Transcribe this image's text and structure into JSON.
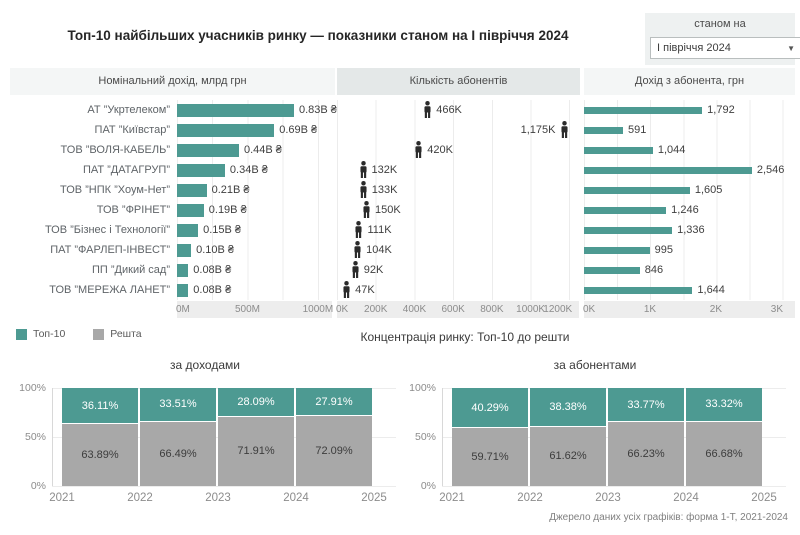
{
  "title": "Топ-10 найбільших учасників ринку — показники станом на І півріччя 2024",
  "filter": {
    "label": "станом на",
    "value": "І півріччя 2024"
  },
  "colors": {
    "top10": "#4d9a92",
    "rest": "#a8a8a8",
    "icon": "#2b2b2b",
    "header_highlight": "#e4e8e8",
    "header_bg": "#f4f6f6",
    "axis_strip": "#ededed"
  },
  "companies": [
    "АТ ”Укртелеком”",
    "ПАТ ”Київстар”",
    "ТОВ ”ВОЛЯ-КАБЕЛЬ”",
    "ПАТ ”ДАТАГРУП”",
    "ТОВ ”НПК ”Хоум-Нет”",
    "ТОВ ”ФРІНЕТ”",
    "ТОВ ”Бізнес і Технології”",
    "ПАТ ”ФАРЛЕП-ІНВЕСТ”",
    "ПП ”Дикий сад”",
    "ТОВ ”МЕРЕЖА ЛАНЕТ”"
  ],
  "legend": [
    {
      "label": "Топ-10"
    },
    {
      "label": "Решта"
    }
  ],
  "concentration_subtitle": "Концентрація ринку: Топ-10 до решти",
  "footer": "Джерело даних усіх графіків: форма 1-Т, 2021-2024",
  "chart_data": [
    {
      "id": "revenue",
      "type": "bar",
      "orientation": "horizontal",
      "title": "Номінальний дохід, млрд грн",
      "categories_ref": "companies",
      "values": [
        830,
        690,
        440,
        340,
        210,
        190,
        150,
        100,
        80,
        80
      ],
      "unit": "M грн",
      "value_labels": [
        "0.83B ₴",
        "0.69B ₴",
        "0.44B ₴",
        "0.34B ₴",
        "0.21B ₴",
        "0.19B ₴",
        "0.15B ₴",
        "0.10B ₴",
        "0.08B ₴",
        "0.08B ₴"
      ],
      "x_ticks": [
        {
          "label": "0M",
          "v": 0
        },
        {
          "label": "500M",
          "v": 500
        },
        {
          "label": "1000M",
          "v": 1000
        }
      ],
      "xlim": [
        0,
        1100
      ]
    },
    {
      "id": "subscribers",
      "type": "pictogram",
      "title": "Кількість абонентів",
      "categories_ref": "companies",
      "values": [
        466,
        1175,
        420,
        132,
        133,
        150,
        111,
        104,
        92,
        47
      ],
      "unit": "K абонентів",
      "value_labels": [
        "466K",
        "1,175K",
        "420K",
        "132K",
        "133K",
        "150K",
        "111K",
        "104K",
        "92K",
        "47K"
      ],
      "label_side": [
        "right",
        "left",
        "right",
        "right",
        "right",
        "right",
        "right",
        "right",
        "right",
        "right"
      ],
      "x_ticks": [
        {
          "label": "0K",
          "v": 0
        },
        {
          "label": "200K",
          "v": 200
        },
        {
          "label": "400K",
          "v": 400
        },
        {
          "label": "600K",
          "v": 600
        },
        {
          "label": "800K",
          "v": 800
        },
        {
          "label": "1000K",
          "v": 1000
        },
        {
          "label": "1200K",
          "v": 1200
        }
      ],
      "xlim": [
        0,
        1250
      ]
    },
    {
      "id": "arpu",
      "type": "bar",
      "orientation": "horizontal",
      "title": "Дохід з абонента, грн",
      "categories_ref": "companies",
      "values": [
        1792,
        591,
        1044,
        2546,
        1605,
        1246,
        1336,
        995,
        846,
        1644
      ],
      "unit": "грн",
      "value_labels": [
        "1,792",
        "591",
        "1,044",
        "2,546",
        "1,605",
        "1,246",
        "1,336",
        "995",
        "846",
        "1,644"
      ],
      "x_ticks": [
        {
          "label": "0K",
          "v": 0
        },
        {
          "label": "1K",
          "v": 1000
        },
        {
          "label": "2K",
          "v": 2000
        },
        {
          "label": "3K",
          "v": 3000
        }
      ],
      "xlim": [
        0,
        3200
      ]
    },
    {
      "id": "concentration-revenue",
      "type": "stacked_bar_100",
      "title": "за доходами",
      "categories": [
        "2021",
        "2022",
        "2023",
        "2024"
      ],
      "series": [
        {
          "name": "Топ-10",
          "values": [
            36.11,
            33.51,
            28.09,
            27.91
          ],
          "labels": [
            "36.11%",
            "33.51%",
            "28.09%",
            "27.91%"
          ]
        },
        {
          "name": "Решта",
          "values": [
            63.89,
            66.49,
            71.91,
            72.09
          ],
          "labels": [
            "63.89%",
            "66.49%",
            "71.91%",
            "72.09%"
          ]
        }
      ],
      "x_ticks": [
        "2021",
        "2022",
        "2023",
        "2024",
        "2025"
      ],
      "y_ticks": [
        "100%",
        "50%",
        "0%"
      ]
    },
    {
      "id": "concentration-subscribers",
      "type": "stacked_bar_100",
      "title": "за абонентами",
      "categories": [
        "2021",
        "2022",
        "2023",
        "2024"
      ],
      "series": [
        {
          "name": "Топ-10",
          "values": [
            40.29,
            38.38,
            33.77,
            33.32
          ],
          "labels": [
            "40.29%",
            "38.38%",
            "33.77%",
            "33.32%"
          ]
        },
        {
          "name": "Решта",
          "values": [
            59.71,
            61.62,
            66.23,
            66.68
          ],
          "labels": [
            "59.71%",
            "61.62%",
            "66.23%",
            "66.68%"
          ]
        }
      ],
      "x_ticks": [
        "2021",
        "2022",
        "2023",
        "2024",
        "2025"
      ],
      "y_ticks": [
        "100%",
        "50%",
        "0%"
      ]
    }
  ]
}
